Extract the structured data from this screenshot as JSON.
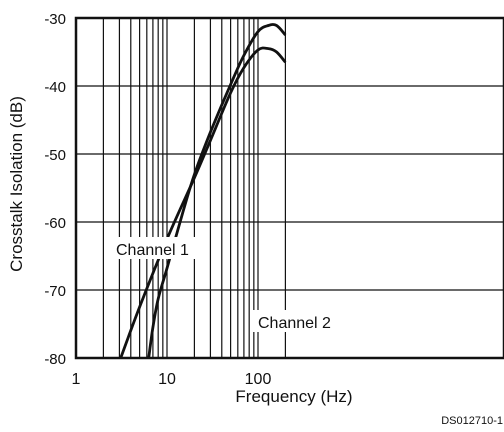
{
  "chart_data": {
    "type": "line",
    "title": "",
    "xlabel": "Frequency (Hz)",
    "ylabel": "Crosstalk Isolation (dB)",
    "x_scale": "log",
    "xlim": [
      1,
      200
    ],
    "ylim": [
      -80,
      -30
    ],
    "x_ticks": [
      {
        "value": 1,
        "label": "1"
      },
      {
        "value": 10,
        "label": "10"
      },
      {
        "value": 100,
        "label": "100"
      }
    ],
    "y_ticks": [
      {
        "value": -30,
        "label": "-30"
      },
      {
        "value": -40,
        "label": "-40"
      },
      {
        "value": -50,
        "label": "-50"
      },
      {
        "value": -60,
        "label": "-60"
      },
      {
        "value": -70,
        "label": "-70"
      },
      {
        "value": -80,
        "label": "-80"
      }
    ],
    "grid": true,
    "series": [
      {
        "name": "Channel 1",
        "x": [
          3.1,
          5,
          10,
          20,
          30,
          50,
          70,
          100,
          130,
          160,
          200
        ],
        "y": [
          -80,
          -72.5,
          -62.5,
          -53.5,
          -48,
          -41,
          -37.3,
          -34.7,
          -34.5,
          -35,
          -36.5
        ]
      },
      {
        "name": "Channel 2",
        "x": [
          6.3,
          7,
          8,
          10,
          15,
          20,
          30,
          50,
          70,
          100,
          130,
          160,
          200
        ],
        "y": [
          -80,
          -75.5,
          -71.3,
          -66.8,
          -58.5,
          -53,
          -46.8,
          -39.8,
          -35.5,
          -32,
          -31.1,
          -31.1,
          -32.5
        ]
      }
    ],
    "annotations": [
      {
        "text": "Channel 1",
        "near": "Channel 1"
      },
      {
        "text": "Channel 2",
        "near": "Channel 2"
      }
    ],
    "footnote": "DS012710-1"
  }
}
